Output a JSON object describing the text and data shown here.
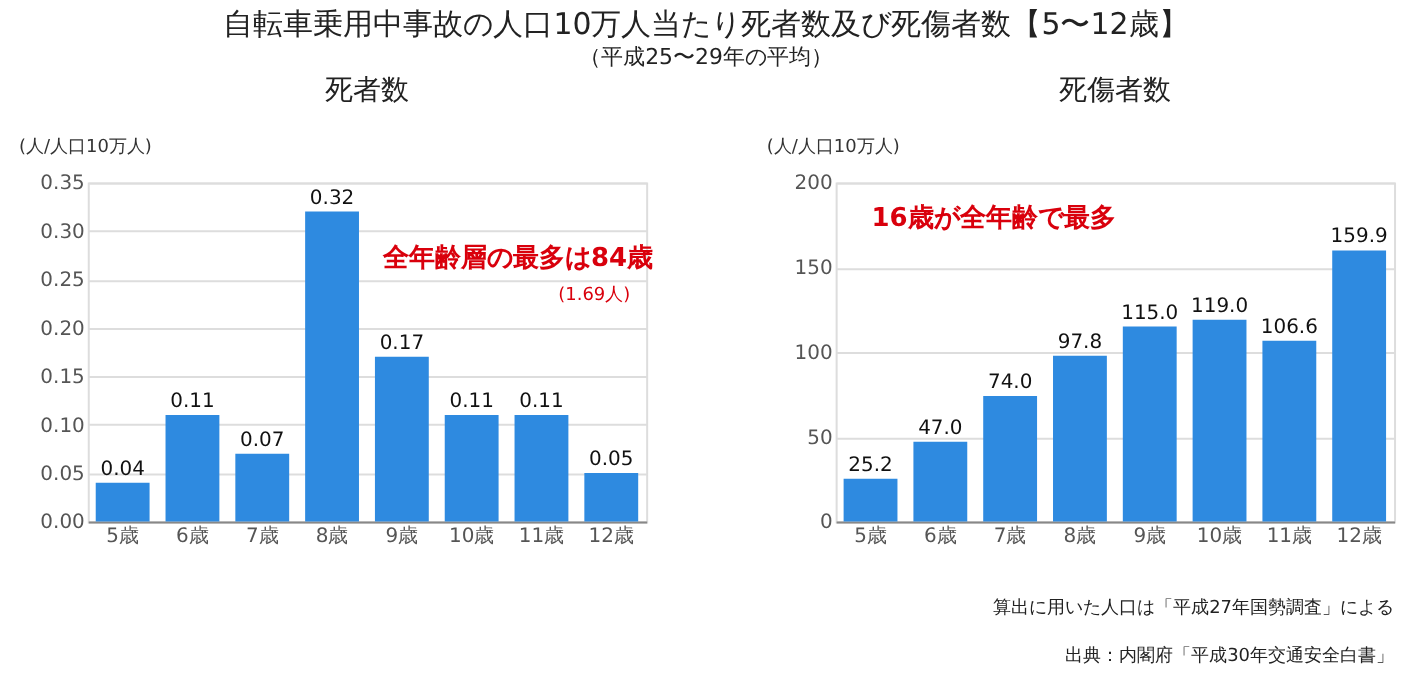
{
  "chart_data": [
    {
      "type": "bar",
      "title": "死者数",
      "ylabel": "(人/人口10万人)",
      "categories": [
        "5歳",
        "6歳",
        "7歳",
        "8歳",
        "9歳",
        "10歳",
        "11歳",
        "12歳"
      ],
      "values": [
        0.04,
        0.11,
        0.07,
        0.32,
        0.17,
        0.11,
        0.11,
        0.05
      ],
      "color": "#2e8ae0",
      "value_labels": [
        "0.04",
        "0.11",
        "0.07",
        "0.32",
        "0.17",
        "0.11",
        "0.11",
        "0.05"
      ],
      "ylim": [
        0,
        0.35
      ],
      "yticks": [
        {
          "value": 0,
          "label": "0.00"
        },
        0.05,
        {
          "value": 0.1,
          "label": "0.10"
        },
        0.15,
        {
          "value": 0.2,
          "label": "0.20"
        },
        0.25,
        {
          "value": 0.3,
          "label": "0.30"
        },
        0.35
      ],
      "grid": "y",
      "annotations": [
        "自転車乗用中事故の人口10万人当たり死者数及び死傷者数【5〜12歳】",
        "（平成25〜29年の平均）",
        "全年齢層の最多は84歳",
        "(1.69人)"
      ]
    },
    {
      "type": "bar",
      "title": "死傷者数",
      "ylabel": "(人/人口10万人)",
      "categories": [
        "5歳",
        "6歳",
        "7歳",
        "8歳",
        "9歳",
        "10歳",
        "11歳",
        "12歳"
      ],
      "values": [
        25.2,
        47.0,
        74.0,
        97.8,
        115.0,
        119.0,
        106.6,
        159.9
      ],
      "color": "#2e8ae0",
      "value_labels": [
        "25.2",
        "47.0",
        "74.0",
        "97.8",
        "115.0",
        "119.0",
        "106.6",
        "159.9"
      ],
      "ylim": [
        0,
        200
      ],
      "yticks": [
        0,
        50,
        100,
        150,
        200
      ],
      "grid": "y",
      "annotations": [
        "16歳が全年齢で最多",
        "算出に用いた人口は「平成27年国勢調査」による",
        "出典：内閣府「平成30年交通安全白書」"
      ]
    }
  ]
}
